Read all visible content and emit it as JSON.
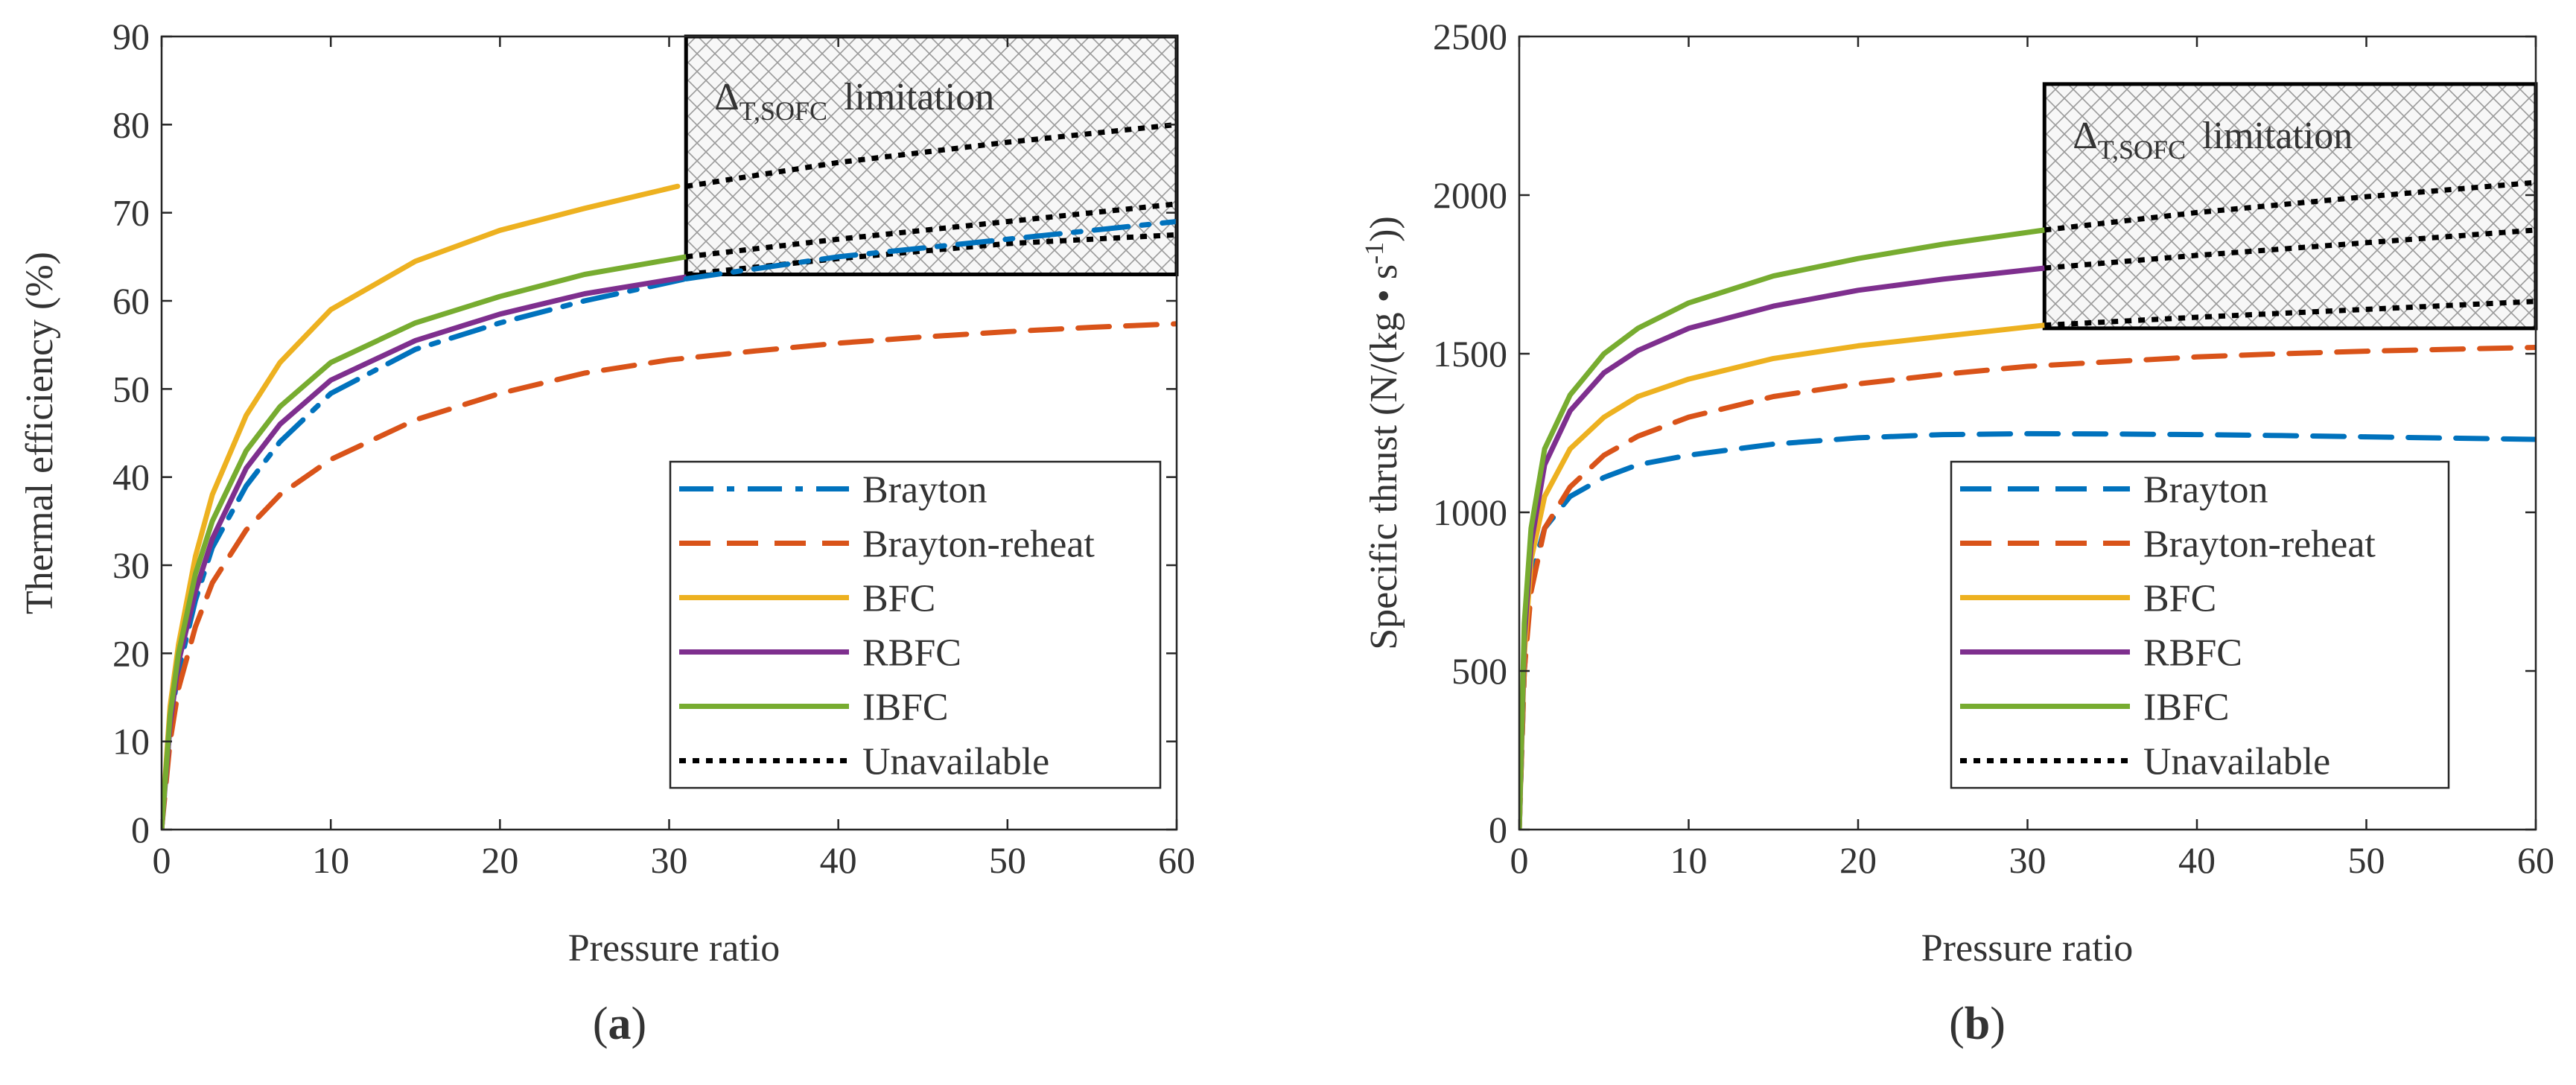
{
  "chart_data": [
    {
      "id": "a",
      "type": "line",
      "panel_label": "a",
      "xlabel": "Pressure ratio",
      "ylabel": "Thermal efficiency (%)",
      "xlim": [
        0,
        60
      ],
      "ylim": [
        0,
        90
      ],
      "xticks": [
        0,
        10,
        20,
        30,
        40,
        50,
        60
      ],
      "yticks": [
        0,
        10,
        20,
        30,
        40,
        50,
        60,
        70,
        80,
        90
      ],
      "legend_position": "bottom-right",
      "annotation": {
        "symbol": "Δ",
        "subscript": "T,SOFC",
        "text": "limitation",
        "region": {
          "x": [
            31,
            60
          ],
          "y": [
            63,
            90
          ]
        }
      },
      "series": [
        {
          "name": "Brayton",
          "color": "#0072BD",
          "dash": "dashdot",
          "legend": true,
          "x": [
            0,
            0.5,
            1,
            2,
            3,
            5,
            7,
            10,
            15,
            20,
            25,
            31
          ],
          "y": [
            0,
            12,
            18,
            26,
            32,
            39,
            44,
            49.5,
            54.5,
            57.5,
            60,
            62.5
          ]
        },
        {
          "name": "Brayton-reheat",
          "color": "#D95319",
          "dash": "dashed",
          "legend": true,
          "x": [
            0,
            0.5,
            1,
            2,
            3,
            5,
            7,
            10,
            15,
            20,
            25,
            30,
            35,
            40,
            45,
            50,
            55,
            60
          ],
          "y": [
            0,
            10,
            16,
            23,
            28,
            34,
            38,
            42,
            46.5,
            49.5,
            51.8,
            53.3,
            54.3,
            55.2,
            55.9,
            56.5,
            57,
            57.4
          ]
        },
        {
          "name": "BFC",
          "color": "#EDB120",
          "dash": "solid",
          "legend": true,
          "x": [
            0,
            0.5,
            1,
            2,
            3,
            5,
            7,
            10,
            15,
            20,
            25,
            30.5
          ],
          "y": [
            0,
            14,
            21,
            31,
            38,
            47,
            53,
            59,
            64.5,
            68,
            70.5,
            73
          ]
        },
        {
          "name": "RBFC",
          "color": "#7E2F8E",
          "dash": "solid",
          "legend": true,
          "x": [
            0,
            0.5,
            1,
            2,
            3,
            5,
            7,
            10,
            15,
            20,
            25,
            31
          ],
          "y": [
            0,
            12,
            19,
            27,
            33,
            41,
            46,
            51,
            55.5,
            58.5,
            60.8,
            62.7
          ]
        },
        {
          "name": "IBFC",
          "color": "#77AC30",
          "dash": "solid",
          "legend": true,
          "x": [
            0,
            0.5,
            1,
            2,
            3,
            5,
            7,
            10,
            15,
            20,
            25,
            31
          ],
          "y": [
            0,
            13,
            20,
            29,
            35,
            43,
            48,
            53,
            57.5,
            60.5,
            63,
            65
          ]
        },
        {
          "name": "Unavailable",
          "color": "#000000",
          "dash": "dotted",
          "legend": true,
          "x": [
            31,
            40,
            50,
            60
          ],
          "y": [
            73,
            75.7,
            78,
            80
          ]
        },
        {
          "name": "Unavailable-2",
          "color": "#000000",
          "dash": "dotted",
          "legend": false,
          "x": [
            31,
            40,
            50,
            60
          ],
          "y": [
            65,
            67,
            69,
            71
          ]
        },
        {
          "name": "Unavailable-3",
          "color": "#000000",
          "dash": "dotted",
          "legend": false,
          "x": [
            31,
            40,
            50,
            60
          ],
          "y": [
            63,
            64.8,
            66.5,
            67.5
          ]
        },
        {
          "name": "Unavailable-4",
          "color": "#0072BD",
          "dash": "dashdot",
          "legend": false,
          "x": [
            31,
            40,
            50,
            60
          ],
          "y": [
            62.5,
            65,
            67,
            69
          ]
        }
      ]
    },
    {
      "id": "b",
      "type": "line",
      "panel_label": "b",
      "xlabel": "Pressure ratio",
      "ylabel": "Specific thrust (N/(kg • s",
      "ylabel_sup": "-1",
      "ylabel_end": "))",
      "xlim": [
        0,
        60
      ],
      "ylim": [
        0,
        2500
      ],
      "xticks": [
        0,
        10,
        20,
        30,
        40,
        50,
        60
      ],
      "yticks": [
        0,
        500,
        1000,
        1500,
        2000,
        2500
      ],
      "legend_position": "bottom-right",
      "annotation": {
        "symbol": "Δ",
        "subscript": "T,SOFC",
        "text": "limitation",
        "region": {
          "x": [
            31,
            60
          ],
          "y": [
            1580,
            2350
          ]
        }
      },
      "series": [
        {
          "name": "Brayton",
          "color": "#0072BD",
          "dash": "dashed",
          "legend": true,
          "x": [
            0,
            0.3,
            0.7,
            1.5,
            3,
            5,
            7,
            10,
            15,
            20,
            25,
            30,
            35,
            40,
            45,
            50,
            55,
            60
          ],
          "y": [
            0,
            500,
            800,
            950,
            1050,
            1110,
            1150,
            1180,
            1215,
            1235,
            1245,
            1248,
            1247,
            1245,
            1242,
            1238,
            1234,
            1230
          ]
        },
        {
          "name": "Brayton-reheat",
          "color": "#D95319",
          "dash": "dashed",
          "legend": true,
          "x": [
            0,
            0.3,
            0.7,
            1.5,
            3,
            5,
            7,
            10,
            15,
            20,
            25,
            30,
            35,
            40,
            45,
            50,
            55,
            60
          ],
          "y": [
            0,
            500,
            750,
            950,
            1080,
            1180,
            1240,
            1300,
            1365,
            1405,
            1435,
            1460,
            1475,
            1490,
            1500,
            1508,
            1514,
            1520
          ]
        },
        {
          "name": "BFC",
          "color": "#EDB120",
          "dash": "solid",
          "legend": true,
          "x": [
            0,
            0.3,
            0.7,
            1.5,
            3,
            5,
            7,
            10,
            15,
            20,
            25,
            31
          ],
          "y": [
            0,
            550,
            850,
            1050,
            1200,
            1300,
            1365,
            1420,
            1485,
            1525,
            1555,
            1590
          ]
        },
        {
          "name": "RBFC",
          "color": "#7E2F8E",
          "dash": "solid",
          "legend": true,
          "x": [
            0,
            0.3,
            0.7,
            1.5,
            3,
            5,
            7,
            10,
            15,
            20,
            25,
            31
          ],
          "y": [
            0,
            600,
            900,
            1150,
            1320,
            1440,
            1510,
            1580,
            1650,
            1700,
            1735,
            1770
          ]
        },
        {
          "name": "IBFC",
          "color": "#77AC30",
          "dash": "solid",
          "legend": true,
          "x": [
            0,
            0.3,
            0.7,
            1.5,
            3,
            5,
            7,
            10,
            15,
            20,
            25,
            31
          ],
          "y": [
            0,
            650,
            950,
            1200,
            1370,
            1500,
            1580,
            1660,
            1745,
            1800,
            1845,
            1890
          ]
        },
        {
          "name": "Unavailable",
          "color": "#000000",
          "dash": "dotted",
          "legend": true,
          "x": [
            31,
            40,
            50,
            60
          ],
          "y": [
            1890,
            1945,
            1995,
            2040
          ]
        },
        {
          "name": "Unavailable-2",
          "color": "#000000",
          "dash": "dotted",
          "legend": false,
          "x": [
            31,
            40,
            50,
            60
          ],
          "y": [
            1770,
            1810,
            1850,
            1890
          ]
        },
        {
          "name": "Unavailable-3",
          "color": "#000000",
          "dash": "dotted",
          "legend": false,
          "x": [
            31,
            40,
            50,
            60
          ],
          "y": [
            1590,
            1615,
            1640,
            1665
          ]
        }
      ]
    }
  ]
}
